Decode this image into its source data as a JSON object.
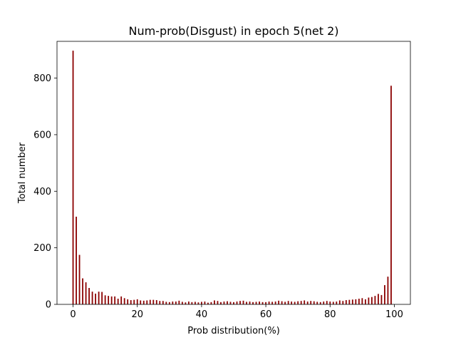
{
  "chart_data": {
    "type": "bar",
    "title": "Num-prob(Disgust) in epoch 5(net 2)",
    "xlabel": "Prob distribution(%)",
    "ylabel": "Total number",
    "xlim": [
      -5,
      105
    ],
    "ylim": [
      0,
      930
    ],
    "x_ticks": [
      0,
      20,
      40,
      60,
      80,
      100
    ],
    "y_ticks": [
      0,
      200,
      400,
      600,
      800
    ],
    "bar_width": 0.4,
    "bar_color": "#8b0000",
    "grid": false,
    "x": [
      0,
      1,
      2,
      3,
      4,
      5,
      6,
      7,
      8,
      9,
      10,
      11,
      12,
      13,
      14,
      15,
      16,
      17,
      18,
      19,
      20,
      21,
      22,
      23,
      24,
      25,
      26,
      27,
      28,
      29,
      30,
      31,
      32,
      33,
      34,
      35,
      36,
      37,
      38,
      39,
      40,
      41,
      42,
      43,
      44,
      45,
      46,
      47,
      48,
      49,
      50,
      51,
      52,
      53,
      54,
      55,
      56,
      57,
      58,
      59,
      60,
      61,
      62,
      63,
      64,
      65,
      66,
      67,
      68,
      69,
      70,
      71,
      72,
      73,
      74,
      75,
      76,
      77,
      78,
      79,
      80,
      81,
      82,
      83,
      84,
      85,
      86,
      87,
      88,
      89,
      90,
      91,
      92,
      93,
      94,
      95,
      96,
      97,
      98,
      99
    ],
    "values": [
      897,
      310,
      175,
      92,
      78,
      58,
      45,
      38,
      45,
      44,
      32,
      30,
      28,
      28,
      20,
      28,
      22,
      18,
      15,
      16,
      18,
      14,
      13,
      14,
      16,
      16,
      15,
      12,
      12,
      9,
      8,
      10,
      10,
      13,
      9,
      7,
      10,
      8,
      9,
      7,
      9,
      10,
      6,
      8,
      14,
      12,
      8,
      10,
      11,
      9,
      8,
      10,
      12,
      13,
      9,
      10,
      8,
      9,
      10,
      8,
      8,
      10,
      9,
      10,
      13,
      11,
      9,
      12,
      10,
      9,
      11,
      12,
      14,
      10,
      12,
      11,
      9,
      8,
      10,
      12,
      10,
      9,
      10,
      14,
      12,
      15,
      16,
      17,
      18,
      20,
      22,
      18,
      24,
      26,
      30,
      37,
      33,
      68,
      98,
      773
    ]
  }
}
